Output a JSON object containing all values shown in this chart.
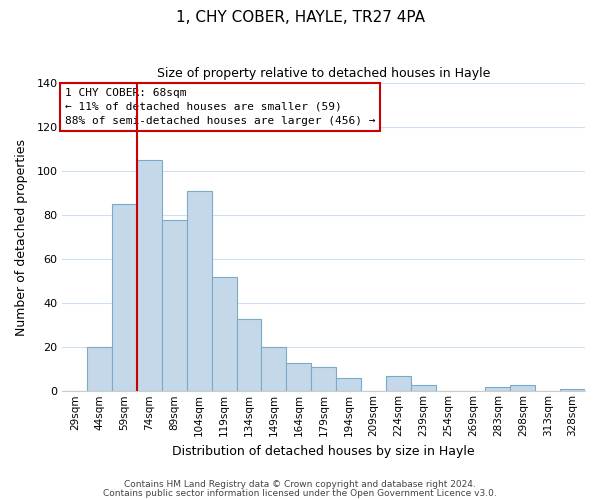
{
  "title": "1, CHY COBER, HAYLE, TR27 4PA",
  "subtitle": "Size of property relative to detached houses in Hayle",
  "xlabel": "Distribution of detached houses by size in Hayle",
  "ylabel": "Number of detached properties",
  "categories": [
    "29sqm",
    "44sqm",
    "59sqm",
    "74sqm",
    "89sqm",
    "104sqm",
    "119sqm",
    "134sqm",
    "149sqm",
    "164sqm",
    "179sqm",
    "194sqm",
    "209sqm",
    "224sqm",
    "239sqm",
    "254sqm",
    "269sqm",
    "283sqm",
    "298sqm",
    "313sqm",
    "328sqm"
  ],
  "values": [
    0,
    20,
    85,
    105,
    78,
    91,
    52,
    33,
    20,
    13,
    11,
    6,
    0,
    7,
    3,
    0,
    0,
    2,
    3,
    0,
    1
  ],
  "bar_color": "#c5d8ea",
  "bar_edge_color": "#7baac8",
  "vline_x_index": 2.5,
  "vline_color": "#cc0000",
  "annotation_title": "1 CHY COBER: 68sqm",
  "annotation_line1": "← 11% of detached houses are smaller (59)",
  "annotation_line2": "88% of semi-detached houses are larger (456) →",
  "annotation_box_color": "#ffffff",
  "annotation_box_edge_color": "#cc0000",
  "ylim": [
    0,
    140
  ],
  "yticks": [
    0,
    20,
    40,
    60,
    80,
    100,
    120,
    140
  ],
  "footer1": "Contains HM Land Registry data © Crown copyright and database right 2024.",
  "footer2": "Contains public sector information licensed under the Open Government Licence v3.0.",
  "background_color": "#ffffff",
  "grid_color": "#d0dff0",
  "title_fontsize": 11,
  "subtitle_fontsize": 9,
  "xlabel_fontsize": 9,
  "ylabel_fontsize": 9,
  "tick_fontsize": 7.5,
  "annotation_fontsize": 8,
  "footer_fontsize": 6.5
}
